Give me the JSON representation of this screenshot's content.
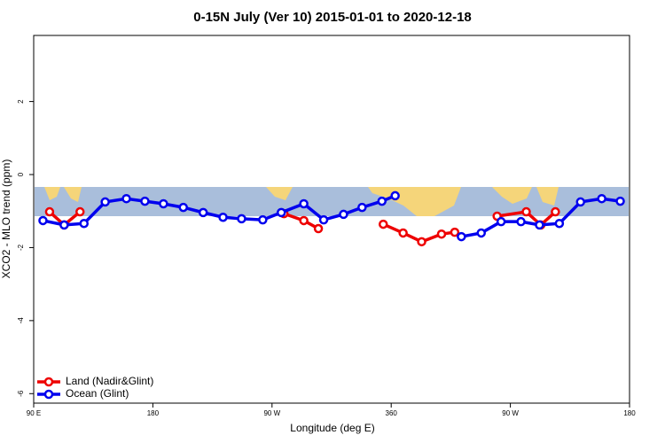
{
  "chart_data": {
    "type": "line",
    "title": "0-15N July (Ver 10)   2015-01-01 to 2020-12-18",
    "x_label": "Longitude (deg E)",
    "y_label": "XCO2 - MLO trend (ppm)",
    "xlim": [
      90,
      540
    ],
    "ylim": [
      -6.26,
      3.81
    ],
    "xticks": [
      {
        "value": 90,
        "label": "90 E"
      },
      180,
      {
        "value": 270,
        "label": "90 W"
      },
      360,
      {
        "value": 450,
        "label": "90 W"
      },
      {
        "value": 540,
        "label": "180"
      }
    ],
    "yticks": [
      -6,
      -4,
      -2,
      0,
      2
    ],
    "legend": "bottom-left",
    "series": [
      {
        "name": "Land (Nadir&Glint)",
        "color": "#ee0000",
        "x": [
          102,
          113,
          125,
          null,
          279,
          294,
          305,
          null,
          354,
          369,
          383,
          398,
          408,
          null,
          440,
          462,
          473,
          484
        ],
        "values": [
          -1.02,
          -1.38,
          -1.02,
          null,
          -1.07,
          -1.26,
          -1.48,
          null,
          -1.36,
          -1.6,
          -1.84,
          -1.63,
          -1.58,
          null,
          -1.14,
          -1.02,
          -1.38,
          -1.02
        ]
      },
      {
        "name": "Ocean (Glint)",
        "color": "#0000ee",
        "x": [
          97,
          113,
          128,
          144,
          160,
          174,
          188,
          203,
          218,
          233,
          247,
          263,
          277,
          294,
          309,
          324,
          338,
          353,
          363,
          null,
          413,
          428,
          443,
          458,
          472,
          487,
          503,
          519,
          533
        ],
        "values": [
          -1.26,
          -1.38,
          -1.34,
          -0.75,
          -0.66,
          -0.73,
          -0.8,
          -0.9,
          -1.04,
          -1.17,
          -1.21,
          -1.24,
          -1.04,
          -0.8,
          -1.24,
          -1.09,
          -0.9,
          -0.73,
          -0.58,
          null,
          -1.7,
          -1.6,
          -1.29,
          -1.29,
          -1.38,
          -1.34,
          -0.75,
          -0.66,
          -0.73
        ]
      }
    ]
  }
}
